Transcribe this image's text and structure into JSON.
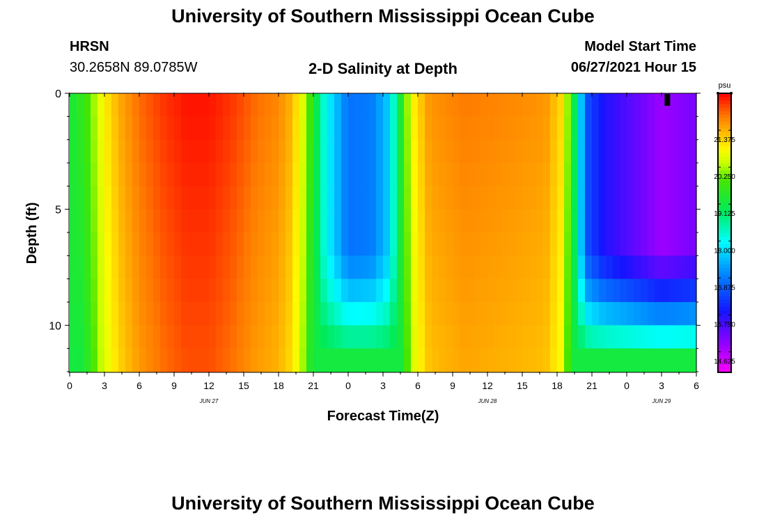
{
  "page": {
    "title_top": "University of Southern Mississippi Ocean Cube",
    "title_bottom": "University of Southern Mississippi Ocean Cube",
    "station_code": "HRSN",
    "station_coords": "30.2658N  89.0785W",
    "plot_title": "2-D Salinity at Depth",
    "model_label": "Model Start Time",
    "model_time": "06/27/2021 Hour 15"
  },
  "chart_data": {
    "type": "heatmap",
    "title": "2-D Salinity at Depth",
    "xlabel": "Forecast Time(Z)",
    "ylabel": "Depth (ft)",
    "x_range_hours": [
      0,
      54
    ],
    "y_range_ft": [
      0,
      12
    ],
    "x_ticks": [
      {
        "h": 0,
        "label": "0"
      },
      {
        "h": 3,
        "label": "3"
      },
      {
        "h": 6,
        "label": "6"
      },
      {
        "h": 9,
        "label": "9"
      },
      {
        "h": 12,
        "label": "12"
      },
      {
        "h": 15,
        "label": "15"
      },
      {
        "h": 18,
        "label": "18"
      },
      {
        "h": 21,
        "label": "21"
      },
      {
        "h": 24,
        "label": "0"
      },
      {
        "h": 27,
        "label": "3"
      },
      {
        "h": 30,
        "label": "6"
      },
      {
        "h": 33,
        "label": "9"
      },
      {
        "h": 36,
        "label": "12"
      },
      {
        "h": 39,
        "label": "15"
      },
      {
        "h": 42,
        "label": "18"
      },
      {
        "h": 45,
        "label": "21"
      },
      {
        "h": 48,
        "label": "0"
      },
      {
        "h": 51,
        "label": "3"
      },
      {
        "h": 54,
        "label": "6"
      }
    ],
    "date_labels": [
      {
        "h": 12,
        "label": "JUN 27"
      },
      {
        "h": 36,
        "label": "JUN 28"
      },
      {
        "h": 51,
        "label": "JUN 29"
      }
    ],
    "y_ticks": [
      {
        "v": 0,
        "label": "0"
      },
      {
        "v": 5,
        "label": "5"
      },
      {
        "v": 10,
        "label": "10"
      }
    ],
    "marker_hour": 51.5,
    "colorbar": {
      "unit": "psu",
      "min": 14.0,
      "max": 22.5,
      "ticks": [
        "14.625",
        "15.750",
        "16.875",
        "18.000",
        "19.125",
        "20.250",
        "21.375"
      ]
    },
    "depth_rows_ft": [
      0.5,
      1.5,
      2.5,
      3.5,
      4.5,
      5.5,
      6.5,
      7.5,
      8.5,
      9.5,
      10.5,
      11.5
    ],
    "surface_salinity_profile": [
      {
        "h": 0,
        "v": 19.2
      },
      {
        "h": 1.5,
        "v": 19.8
      },
      {
        "h": 3,
        "v": 20.9
      },
      {
        "h": 4.5,
        "v": 21.5
      },
      {
        "h": 6,
        "v": 21.9
      },
      {
        "h": 8,
        "v": 22.2
      },
      {
        "h": 10,
        "v": 22.4
      },
      {
        "h": 12,
        "v": 22.4
      },
      {
        "h": 14,
        "v": 22.2
      },
      {
        "h": 16,
        "v": 21.9
      },
      {
        "h": 18,
        "v": 21.7
      },
      {
        "h": 19,
        "v": 21.4
      },
      {
        "h": 20,
        "v": 20.7
      },
      {
        "h": 21,
        "v": 19.4
      },
      {
        "h": 22,
        "v": 18.1
      },
      {
        "h": 24,
        "v": 16.8
      },
      {
        "h": 26,
        "v": 16.9
      },
      {
        "h": 27.5,
        "v": 17.6
      },
      {
        "h": 28.5,
        "v": 19.3
      },
      {
        "h": 29.5,
        "v": 20.8
      },
      {
        "h": 31,
        "v": 21.6
      },
      {
        "h": 34,
        "v": 21.8
      },
      {
        "h": 38,
        "v": 21.7
      },
      {
        "h": 41,
        "v": 21.6
      },
      {
        "h": 42.5,
        "v": 21.0
      },
      {
        "h": 43.5,
        "v": 19.0
      },
      {
        "h": 44.5,
        "v": 16.5
      },
      {
        "h": 46,
        "v": 15.8
      },
      {
        "h": 48,
        "v": 15.4
      },
      {
        "h": 51,
        "v": 14.8
      },
      {
        "h": 54,
        "v": 15.1
      }
    ]
  }
}
